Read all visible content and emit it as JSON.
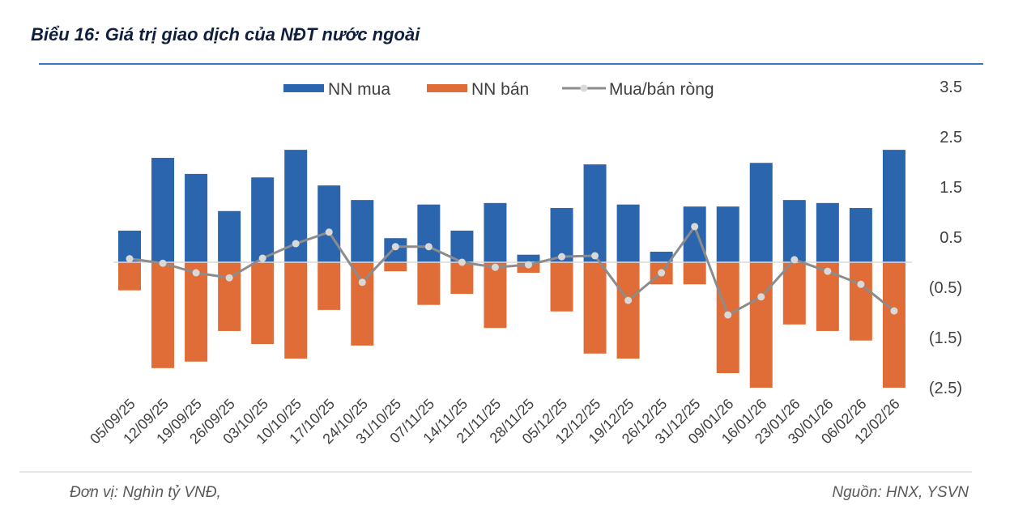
{
  "title": "Biểu 16: Giá trị giao dịch của NĐT nước ngoài",
  "footer": {
    "unit": "Đơn vị: Nghìn tỷ VNĐ,",
    "source": "Nguồn: HNX, YSVN"
  },
  "chart_data": {
    "type": "bar",
    "title": "Biểu 16: Giá trị giao dịch của NĐT nước ngoài",
    "categories": [
      "05/09/25",
      "12/09/25",
      "19/09/25",
      "26/09/25",
      "03/10/25",
      "10/10/25",
      "17/10/25",
      "24/10/25",
      "31/10/25",
      "07/11/25",
      "14/11/25",
      "21/11/25",
      "28/11/25",
      "05/12/25",
      "12/12/25",
      "19/12/25",
      "26/12/25",
      "31/12/25",
      "09/01/26",
      "16/01/26",
      "23/01/26",
      "30/01/26",
      "06/02/26",
      "12/02/26"
    ],
    "series": [
      {
        "name": "NN mua",
        "kind": "bar",
        "color": "#2b65ad",
        "values": [
          0.63,
          2.08,
          1.76,
          1.02,
          1.69,
          2.24,
          1.53,
          1.24,
          0.48,
          1.15,
          0.63,
          1.18,
          0.15,
          1.08,
          1.95,
          1.15,
          0.21,
          1.11,
          1.11,
          1.98,
          1.24,
          1.18,
          1.08,
          2.24
        ]
      },
      {
        "name": "NN bán",
        "kind": "bar",
        "color": "#e06d38",
        "values": [
          -0.56,
          -2.11,
          -1.98,
          -1.37,
          -1.63,
          -1.92,
          -0.95,
          -1.66,
          -0.18,
          -0.85,
          -0.63,
          -1.31,
          -0.21,
          -0.98,
          -1.82,
          -1.92,
          -0.44,
          -0.44,
          -2.21,
          -2.5,
          -1.24,
          -1.37,
          -1.56,
          -2.5
        ]
      },
      {
        "name": "Mua/bán ròng",
        "kind": "line",
        "color": "#8c8c8c",
        "marker_color": "#d9d9d9",
        "values": [
          0.07,
          -0.02,
          -0.21,
          -0.31,
          0.08,
          0.37,
          0.6,
          -0.4,
          0.31,
          0.31,
          0.0,
          -0.1,
          -0.05,
          0.11,
          0.13,
          -0.76,
          -0.21,
          0.71,
          -1.05,
          -0.69,
          0.05,
          -0.18,
          -0.44,
          -0.97
        ]
      }
    ],
    "y_ticks": [
      3.5,
      2.5,
      1.5,
      0.5,
      -0.5,
      -1.5,
      -2.5
    ],
    "y_tick_labels": [
      "3.5",
      "2.5",
      "1.5",
      "0.5",
      "(0.5)",
      "(1.5)",
      "(2.5)"
    ],
    "ylim": [
      -2.5,
      3.5
    ],
    "y_axis_side": "right",
    "grid": false,
    "legend": "top"
  }
}
